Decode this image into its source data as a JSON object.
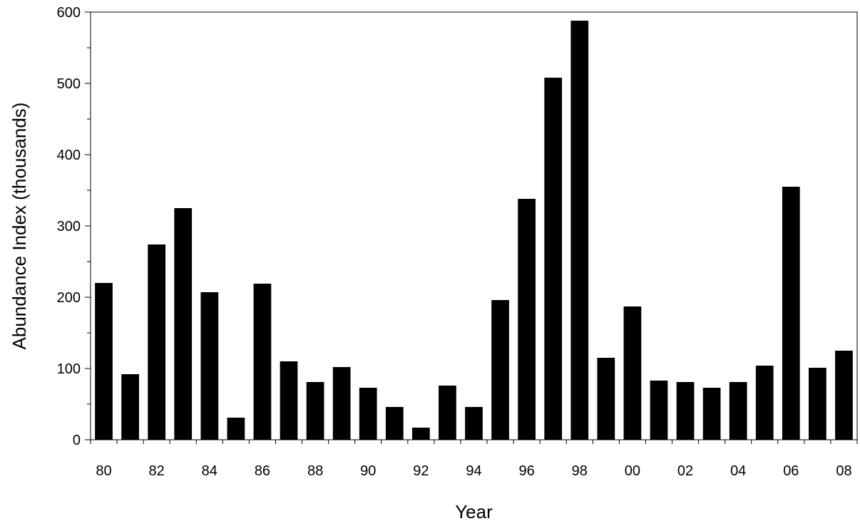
{
  "chart_data": {
    "type": "bar",
    "xlabel": "Year",
    "ylabel": "Abundance Index (thousands)",
    "ylim": [
      0,
      600
    ],
    "y_major_ticks": [
      0,
      100,
      200,
      300,
      400,
      500,
      600
    ],
    "y_minor_step": 50,
    "grid": false,
    "legend": "none",
    "bar_color": "#000000",
    "categories": [
      "80",
      "81",
      "82",
      "83",
      "84",
      "85",
      "86",
      "87",
      "88",
      "89",
      "90",
      "91",
      "92",
      "93",
      "94",
      "95",
      "96",
      "97",
      "98",
      "99",
      "00",
      "01",
      "02",
      "03",
      "04",
      "05",
      "06",
      "07",
      "08"
    ],
    "tick_labels": [
      "80",
      "",
      "82",
      "",
      "84",
      "",
      "86",
      "",
      "88",
      "",
      "90",
      "",
      "92",
      "",
      "94",
      "",
      "96",
      "",
      "98",
      "",
      "00",
      "",
      "02",
      "",
      "04",
      "",
      "06",
      "",
      "08"
    ],
    "values": [
      220,
      92,
      274,
      325,
      207,
      31,
      219,
      110,
      81,
      102,
      73,
      46,
      17,
      76,
      46,
      196,
      338,
      508,
      588,
      115,
      187,
      83,
      81,
      73,
      81,
      104,
      355,
      101,
      125
    ]
  }
}
